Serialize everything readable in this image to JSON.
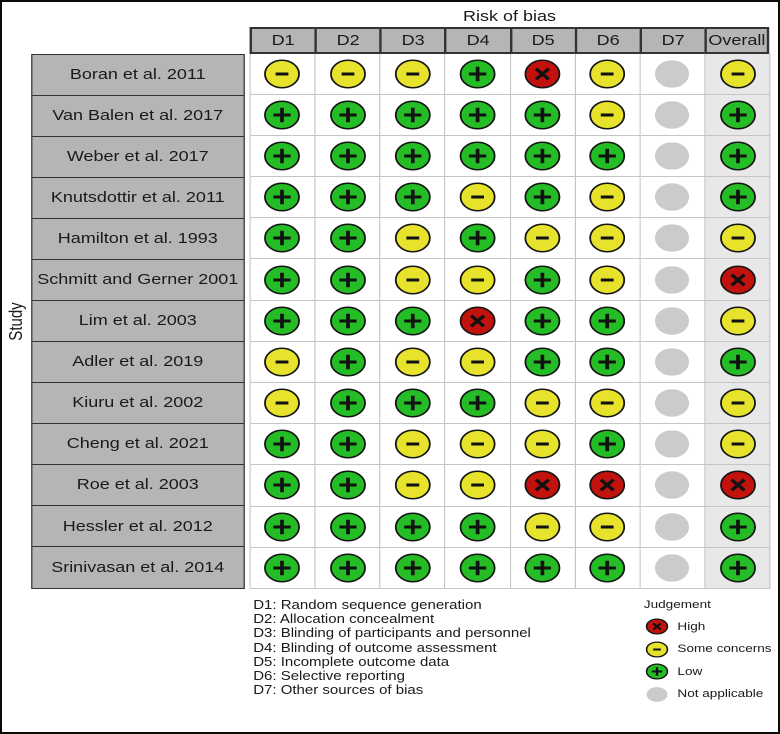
{
  "chart_data": {
    "type": "heatmap",
    "variant": "risk-of-bias-traffic-light-plot",
    "title": "Risk of bias",
    "ylabel": "Study",
    "columns": [
      "D1",
      "D2",
      "D3",
      "D4",
      "D5",
      "D6",
      "D7",
      "Overall"
    ],
    "rows": [
      {
        "study": "Boran et al. 2011",
        "judgements": [
          "concerns",
          "concerns",
          "concerns",
          "low",
          "high",
          "concerns",
          "na",
          "concerns"
        ]
      },
      {
        "study": "Van Balen et al. 2017",
        "judgements": [
          "low",
          "low",
          "low",
          "low",
          "low",
          "concerns",
          "na",
          "low"
        ]
      },
      {
        "study": "Weber et al. 2017",
        "judgements": [
          "low",
          "low",
          "low",
          "low",
          "low",
          "low",
          "na",
          "low"
        ]
      },
      {
        "study": "Knutsdottir et al. 2011",
        "judgements": [
          "low",
          "low",
          "low",
          "concerns",
          "low",
          "concerns",
          "na",
          "low"
        ]
      },
      {
        "study": "Hamilton et al. 1993",
        "judgements": [
          "low",
          "low",
          "concerns",
          "low",
          "concerns",
          "concerns",
          "na",
          "concerns"
        ]
      },
      {
        "study": "Schmitt and Gerner 2001",
        "judgements": [
          "low",
          "low",
          "concerns",
          "concerns",
          "low",
          "concerns",
          "na",
          "high"
        ]
      },
      {
        "study": "Lim et al. 2003",
        "judgements": [
          "low",
          "low",
          "low",
          "high",
          "low",
          "low",
          "na",
          "concerns"
        ]
      },
      {
        "study": "Adler et al. 2019",
        "judgements": [
          "concerns",
          "low",
          "concerns",
          "concerns",
          "low",
          "low",
          "na",
          "low"
        ]
      },
      {
        "study": "Kiuru et al. 2002",
        "judgements": [
          "concerns",
          "low",
          "low",
          "low",
          "concerns",
          "concerns",
          "na",
          "concerns"
        ]
      },
      {
        "study": "Cheng et al. 2021",
        "judgements": [
          "low",
          "low",
          "concerns",
          "concerns",
          "concerns",
          "low",
          "na",
          "concerns"
        ]
      },
      {
        "study": "Roe et al. 2003",
        "judgements": [
          "low",
          "low",
          "concerns",
          "concerns",
          "high",
          "high",
          "na",
          "high"
        ]
      },
      {
        "study": "Hessler et al. 2012",
        "judgements": [
          "low",
          "low",
          "low",
          "low",
          "concerns",
          "concerns",
          "na",
          "low"
        ]
      },
      {
        "study": "Srinivasan et al. 2014",
        "judgements": [
          "low",
          "low",
          "low",
          "low",
          "low",
          "low",
          "na",
          "low"
        ]
      }
    ],
    "judgement_scale": {
      "high": {
        "label": "High",
        "symbol": "x",
        "color": "#c2120e"
      },
      "concerns": {
        "label": "Some concerns",
        "symbol": "minus",
        "color": "#e7e32c"
      },
      "low": {
        "label": "Low",
        "symbol": "plus",
        "color": "#25bd25"
      },
      "na": {
        "label": "Not applicable",
        "symbol": "none",
        "color": "#cbcbcb"
      }
    },
    "legend": {
      "title": "Judgement",
      "items": [
        "high",
        "concerns",
        "low",
        "na"
      ]
    },
    "footnotes": [
      "D1: Random sequence generation",
      "D2: Allocation concealment",
      "D3: Blinding of participants and personnel",
      "D4: Blinding of outcome assessment",
      "D5: Incomplete outcome data",
      "D6: Selective reporting",
      "D7: Other sources of bias"
    ],
    "colors": {
      "frame": "#0a0a0a",
      "dark_border": "#333333",
      "cell_gray": "#b5b5b5",
      "overall_col_bg": "#e8e8e8",
      "grid_line": "#c5c5c5",
      "symbol": "#111111",
      "circle_outline": "#141414",
      "text": "#1a1a1a"
    }
  }
}
